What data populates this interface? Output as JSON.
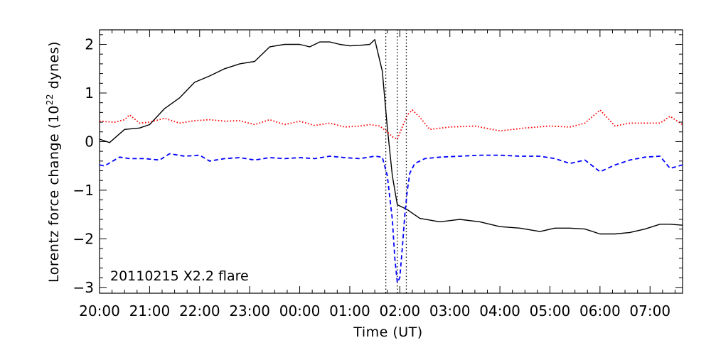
{
  "chart_data": {
    "type": "line",
    "xlabel": "Time (UT)",
    "ylabel": {
      "prefix": "Lorentz force change (10",
      "exponent": "22",
      "suffix": " dynes)"
    },
    "xlim": [
      20.0,
      31.65
    ],
    "ylim": [
      -3.12,
      2.3
    ],
    "grid": false,
    "x_ticks": [
      20,
      21,
      22,
      23,
      24,
      25,
      26,
      27,
      28,
      29,
      30,
      31
    ],
    "x_tick_labels": [
      "20:00",
      "21:00",
      "22:00",
      "23:00",
      "00:00",
      "01:00",
      "02:00",
      "03:00",
      "04:00",
      "05:00",
      "06:00",
      "07:00"
    ],
    "y_ticks": [
      2,
      1,
      0,
      -1,
      -2,
      -3
    ],
    "y_tick_labels": [
      "2",
      "1",
      "0",
      "−1",
      "−2",
      "−3"
    ],
    "annotation": "20110215 X2.2 flare",
    "vlines": [
      25.72,
      25.95,
      26.13
    ],
    "series": [
      {
        "color": "#000000",
        "dash": "solid",
        "x": [
          20.0,
          20.2,
          20.5,
          20.8,
          21.0,
          21.3,
          21.6,
          21.9,
          22.2,
          22.5,
          22.8,
          23.1,
          23.4,
          23.7,
          24.0,
          24.2,
          24.4,
          24.6,
          24.8,
          25.0,
          25.2,
          25.4,
          25.5,
          25.65,
          25.75,
          25.85,
          25.95,
          26.05,
          26.15,
          26.4,
          26.8,
          27.2,
          27.6,
          28.0,
          28.4,
          28.8,
          29.1,
          29.4,
          29.7,
          30.0,
          30.3,
          30.6,
          30.9,
          31.2,
          31.4,
          31.65
        ],
        "y": [
          0.05,
          -0.02,
          0.25,
          0.28,
          0.35,
          0.68,
          0.9,
          1.22,
          1.35,
          1.5,
          1.6,
          1.65,
          1.95,
          2.0,
          2.0,
          1.95,
          2.05,
          2.05,
          2.0,
          1.97,
          1.98,
          2.0,
          2.1,
          1.45,
          0.3,
          -0.7,
          -1.3,
          -1.35,
          -1.4,
          -1.58,
          -1.65,
          -1.6,
          -1.65,
          -1.75,
          -1.78,
          -1.85,
          -1.78,
          -1.78,
          -1.8,
          -1.9,
          -1.9,
          -1.87,
          -1.8,
          -1.7,
          -1.7,
          -1.72
        ]
      },
      {
        "color": "#ff0000",
        "dash": "dotted",
        "x": [
          20.0,
          20.3,
          20.5,
          20.6,
          20.8,
          21.0,
          21.3,
          21.6,
          21.9,
          22.2,
          22.5,
          22.8,
          23.1,
          23.4,
          23.7,
          24.0,
          24.3,
          24.6,
          24.9,
          25.2,
          25.4,
          25.6,
          25.75,
          25.85,
          25.95,
          26.05,
          26.15,
          26.25,
          26.4,
          26.6,
          27.0,
          27.5,
          28.0,
          28.5,
          29.0,
          29.4,
          29.7,
          30.0,
          30.3,
          30.6,
          30.9,
          31.2,
          31.4,
          31.65
        ],
        "y": [
          0.42,
          0.4,
          0.45,
          0.55,
          0.38,
          0.4,
          0.48,
          0.38,
          0.43,
          0.45,
          0.42,
          0.43,
          0.35,
          0.45,
          0.35,
          0.42,
          0.33,
          0.38,
          0.3,
          0.32,
          0.35,
          0.32,
          0.2,
          0.1,
          0.05,
          0.3,
          0.55,
          0.65,
          0.5,
          0.25,
          0.3,
          0.32,
          0.22,
          0.28,
          0.32,
          0.3,
          0.38,
          0.65,
          0.32,
          0.38,
          0.38,
          0.38,
          0.52,
          0.35
        ]
      },
      {
        "color": "#0000ff",
        "dash": "dashed",
        "x": [
          20.0,
          20.1,
          20.4,
          20.6,
          20.9,
          21.2,
          21.4,
          21.7,
          22.0,
          22.2,
          22.5,
          22.8,
          23.1,
          23.4,
          23.7,
          24.0,
          24.3,
          24.6,
          24.9,
          25.2,
          25.5,
          25.65,
          25.75,
          25.85,
          25.9,
          25.95,
          26.0,
          26.05,
          26.1,
          26.15,
          26.2,
          26.3,
          26.5,
          26.8,
          27.2,
          27.6,
          28.0,
          28.4,
          28.8,
          29.1,
          29.4,
          29.7,
          30.0,
          30.3,
          30.6,
          30.9,
          31.2,
          31.4,
          31.65
        ],
        "y": [
          -0.48,
          -0.5,
          -0.32,
          -0.35,
          -0.35,
          -0.38,
          -0.25,
          -0.3,
          -0.28,
          -0.4,
          -0.35,
          -0.33,
          -0.38,
          -0.33,
          -0.35,
          -0.33,
          -0.35,
          -0.3,
          -0.33,
          -0.35,
          -0.3,
          -0.32,
          -0.7,
          -1.6,
          -2.4,
          -2.9,
          -2.8,
          -2.2,
          -1.5,
          -1.0,
          -0.65,
          -0.45,
          -0.35,
          -0.32,
          -0.3,
          -0.28,
          -0.28,
          -0.3,
          -0.3,
          -0.35,
          -0.45,
          -0.38,
          -0.62,
          -0.48,
          -0.38,
          -0.32,
          -0.3,
          -0.55,
          -0.48
        ]
      }
    ]
  }
}
